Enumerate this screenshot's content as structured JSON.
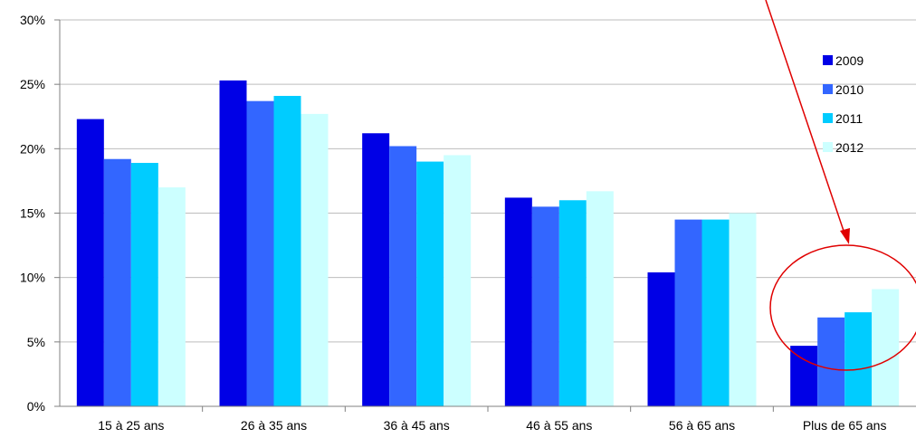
{
  "chart_data": {
    "type": "bar",
    "categories": [
      "15 à 25 ans",
      "26 à 35 ans",
      "36 à 45 ans",
      "46 à 55 ans",
      "56 à 65 ans",
      "Plus de 65 ans"
    ],
    "series": [
      {
        "name": "2009",
        "color": "#0000e6",
        "values": [
          22.3,
          25.3,
          21.2,
          16.2,
          10.4,
          4.7
        ]
      },
      {
        "name": "2010",
        "color": "#3366ff",
        "values": [
          19.2,
          23.7,
          20.2,
          15.5,
          14.5,
          6.9
        ]
      },
      {
        "name": "2011",
        "color": "#00ccff",
        "values": [
          18.9,
          24.1,
          19.0,
          16.0,
          14.5,
          7.3
        ]
      },
      {
        "name": "2012",
        "color": "#ccffff",
        "values": [
          17.0,
          22.7,
          19.5,
          16.7,
          15.0,
          9.1
        ]
      }
    ],
    "ylim": [
      0,
      30
    ],
    "yticks": [
      "0%",
      "5%",
      "10%",
      "15%",
      "20%",
      "25%",
      "30%"
    ],
    "ytick_values": [
      0,
      5,
      10,
      15,
      20,
      25,
      30
    ],
    "grid": true,
    "legend": "right",
    "annotation": {
      "shape": "ellipse-and-arrow",
      "color": "#e00000",
      "highlights": "Plus de 65 ans"
    }
  }
}
